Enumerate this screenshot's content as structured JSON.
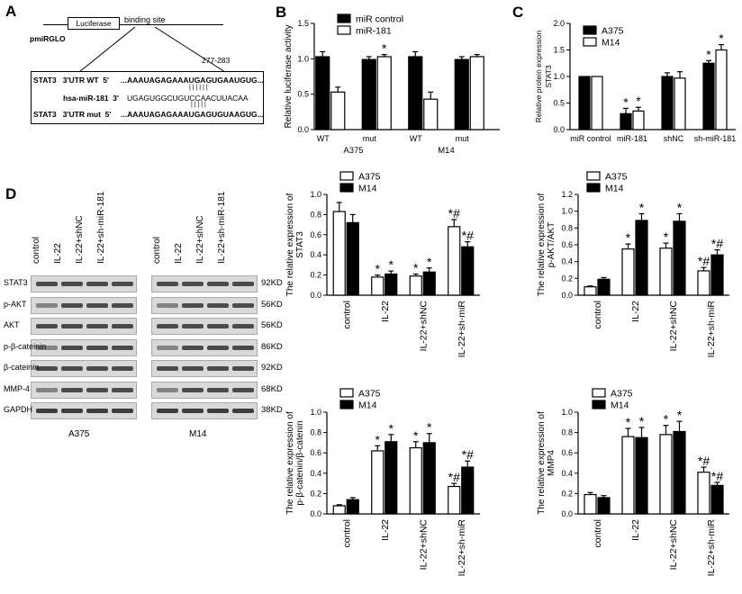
{
  "panel_letters": {
    "a": "A",
    "b": "B",
    "c": "C",
    "d": "D"
  },
  "panel_a": {
    "vector": "pmiRGLO",
    "luciferase": "Luciferase",
    "binding_site": "binding site",
    "range": "277-283",
    "row1_label": "STAT3   3'UTR WT  5'",
    "row1_seq": "...AAAUAGAGAAAUGAGUGAAUGUG...",
    "row2_label": "hsa-miR-181  3'",
    "row2_seq": "UGAGUGGCUGUCCAACUUACAA",
    "row3_label": "STAT3   3'UTR mut  5'",
    "row3_seq": "...AAAUAGAGAAAUGAGUGUAAGUG...",
    "pairs_top": "| | | | | |",
    "pairs_bot": "| | | | |"
  },
  "blots": {
    "lanes": [
      "control",
      "IL-22",
      "IL-22+shNC",
      "IL-22+sh-miR-181"
    ],
    "rows": [
      "STAT3",
      "p-AKT",
      "AKT",
      "p-β-cateinin",
      "β-cateinin",
      "MMP-4",
      "GAPDH"
    ],
    "sizes": [
      "92KD",
      "56KD",
      "56KD",
      "86KD",
      "92KD",
      "68KD",
      "38KD"
    ],
    "groups": [
      "A375",
      "M14"
    ]
  },
  "colors": {
    "filled": "#000000",
    "open": "#ffffff",
    "stroke": "#000000"
  },
  "chart_data": [
    {
      "id": "B",
      "type": "bar",
      "ylabel": "Relative luciferase activity",
      "ylim": [
        0,
        1.5
      ],
      "yticks": [
        "0.0",
        "0.5",
        "1.0",
        "1.5"
      ],
      "legend": [
        "miR control",
        "miR-181"
      ],
      "categories": [
        "WT",
        "mut",
        "WT",
        "mut"
      ],
      "groups": [
        "A375",
        "M14"
      ],
      "series": [
        {
          "name": "miR control",
          "values": [
            1.03,
            0.99,
            1.03,
            0.99
          ],
          "errors": [
            0.07,
            0.04,
            0.07,
            0.04
          ]
        },
        {
          "name": "miR-181",
          "values": [
            0.53,
            1.03,
            0.43,
            1.03
          ],
          "errors": [
            0.07,
            0.03,
            0.1,
            0.03
          ]
        }
      ],
      "sig": [
        "",
        "*",
        "",
        ""
      ]
    },
    {
      "id": "C",
      "type": "bar",
      "ylabel": "Relative protein expression STAT3",
      "ylim": [
        0,
        2.0
      ],
      "yticks": [
        "0.0",
        "0.5",
        "1.0",
        "1.5",
        "2.0"
      ],
      "legend": [
        "A375",
        "M14"
      ],
      "categories": [
        "miR control",
        "miR-181",
        "shNC",
        "sh-miR-181"
      ],
      "series": [
        {
          "name": "A375",
          "values": [
            1.0,
            0.3,
            1.0,
            1.25
          ],
          "errors": [
            0,
            0.1,
            0.07,
            0.05
          ]
        },
        {
          "name": "M14",
          "values": [
            1.0,
            0.35,
            0.97,
            1.5
          ],
          "errors": [
            0,
            0.07,
            0.12,
            0.1
          ]
        }
      ],
      "sig_a": [
        "",
        "*",
        "",
        "*"
      ],
      "sig_b": [
        "",
        "*",
        "",
        "*"
      ]
    },
    {
      "id": "D1",
      "type": "bar",
      "ylabel": "The relative expression of STAT3",
      "ylim": [
        0,
        1.0
      ],
      "yticks": [
        "0.0",
        "0.2",
        "0.4",
        "0.6",
        "0.8",
        "1.0"
      ],
      "legend": [
        "A375",
        "M14"
      ],
      "categories": [
        "control",
        "IL-22",
        "IL-22+shNC",
        "IL-22+sh-miR"
      ],
      "series": [
        {
          "name": "A375",
          "values": [
            0.83,
            0.18,
            0.19,
            0.68
          ],
          "errors": [
            0.09,
            0.02,
            0.02,
            0.07
          ]
        },
        {
          "name": "M14",
          "values": [
            0.72,
            0.21,
            0.23,
            0.48
          ],
          "errors": [
            0.08,
            0.03,
            0.04,
            0.05
          ]
        }
      ],
      "sig_a": [
        "",
        "*",
        "*",
        "*#"
      ],
      "sig_b": [
        "",
        "*",
        "*",
        "*#"
      ]
    },
    {
      "id": "D2",
      "type": "bar",
      "ylabel": "The relative expression of p-AKT/AKT",
      "ylim": [
        0,
        1.2
      ],
      "yticks": [
        "0.0",
        "0.2",
        "0.4",
        "0.6",
        "0.8",
        "1.0",
        "1.2"
      ],
      "legend": [
        "A375",
        "M14"
      ],
      "categories": [
        "control",
        "IL-22",
        "IL-22+shNC",
        "IL-22+sh-miR"
      ],
      "series": [
        {
          "name": "A375",
          "values": [
            0.1,
            0.55,
            0.56,
            0.29
          ],
          "errors": [
            0.01,
            0.06,
            0.06,
            0.04
          ]
        },
        {
          "name": "M14",
          "values": [
            0.19,
            0.89,
            0.88,
            0.48
          ],
          "errors": [
            0.02,
            0.08,
            0.09,
            0.06
          ]
        }
      ],
      "sig_a": [
        "",
        "*",
        "*",
        "*#"
      ],
      "sig_b": [
        "",
        "*",
        "*",
        "*#"
      ]
    },
    {
      "id": "D3",
      "type": "bar",
      "ylabel": "The relative expression of p-β-catenin/β-catenin",
      "ylim": [
        0,
        1.0
      ],
      "yticks": [
        "0.0",
        "0.2",
        "0.4",
        "0.6",
        "0.8",
        "1.0"
      ],
      "legend": [
        "A375",
        "M14"
      ],
      "categories": [
        "control",
        "IL-22",
        "IL-22+shNC",
        "IL-22+sh-miR"
      ],
      "series": [
        {
          "name": "A375",
          "values": [
            0.08,
            0.62,
            0.65,
            0.27
          ],
          "errors": [
            0.01,
            0.05,
            0.06,
            0.03
          ]
        },
        {
          "name": "M14",
          "values": [
            0.14,
            0.71,
            0.7,
            0.46
          ],
          "errors": [
            0.02,
            0.07,
            0.09,
            0.06
          ]
        }
      ],
      "sig_a": [
        "",
        "*",
        "*",
        "*#"
      ],
      "sig_b": [
        "",
        "*",
        "*",
        "*#"
      ]
    },
    {
      "id": "D4",
      "type": "bar",
      "ylabel": "The relative expression of MMP4",
      "ylim": [
        0,
        1.0
      ],
      "yticks": [
        "0.0",
        "0.2",
        "0.4",
        "0.6",
        "0.8",
        "1.0"
      ],
      "legend": [
        "A375",
        "M14"
      ],
      "categories": [
        "control",
        "IL-22",
        "IL-22+shNC",
        "IL-22+sh-miR"
      ],
      "series": [
        {
          "name": "A375",
          "values": [
            0.19,
            0.76,
            0.78,
            0.41
          ],
          "errors": [
            0.02,
            0.08,
            0.09,
            0.05
          ]
        },
        {
          "name": "M14",
          "values": [
            0.16,
            0.75,
            0.81,
            0.28
          ],
          "errors": [
            0.02,
            0.1,
            0.1,
            0.03
          ]
        }
      ],
      "sig_a": [
        "",
        "*",
        "*",
        "*#"
      ],
      "sig_b": [
        "",
        "*",
        "*",
        "*#"
      ]
    }
  ]
}
